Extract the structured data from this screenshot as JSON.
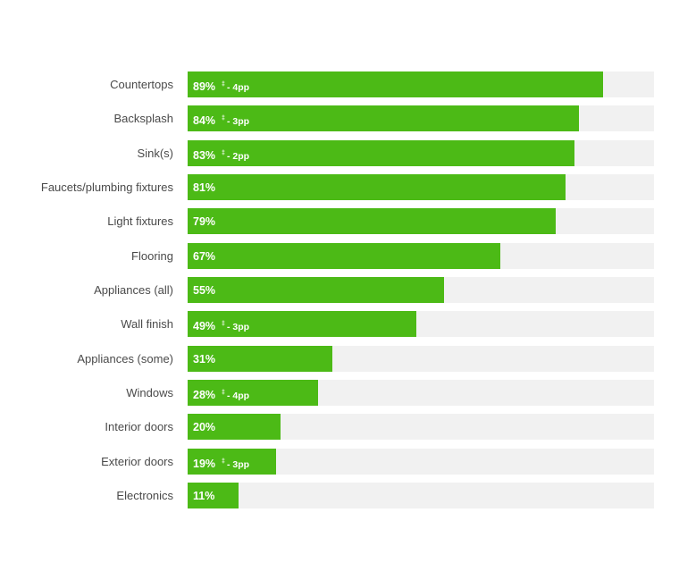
{
  "colors": {
    "bar": "#4cba16",
    "track": "#f1f1f1",
    "label": "#4a4a4a",
    "bar_text": "#ffffff"
  },
  "chart_data": {
    "type": "bar",
    "orientation": "horizontal",
    "xlim": [
      0,
      100
    ],
    "grid": false,
    "categories": [
      "Countertops",
      "Backsplash",
      "Sink(s)",
      "Faucets/plumbing fixtures",
      "Light fixtures",
      "Flooring",
      "Appliances (all)",
      "Wall finish",
      "Appliances (some)",
      "Windows",
      "Interior doors",
      "Exterior doors",
      "Electronics"
    ],
    "values": [
      89,
      84,
      83,
      81,
      79,
      67,
      55,
      49,
      31,
      28,
      20,
      19,
      11
    ],
    "value_labels": [
      "89%",
      "84%",
      "83%",
      "81%",
      "79%",
      "67%",
      "55%",
      "49%",
      "31%",
      "28%",
      "20%",
      "19%",
      "11%"
    ],
    "change_marker": "‡",
    "change_labels": [
      "- 4pp",
      "- 3pp",
      "- 2pp",
      "",
      "",
      "",
      "",
      "- 3pp",
      "",
      "- 4pp",
      "",
      "- 3pp",
      ""
    ]
  }
}
